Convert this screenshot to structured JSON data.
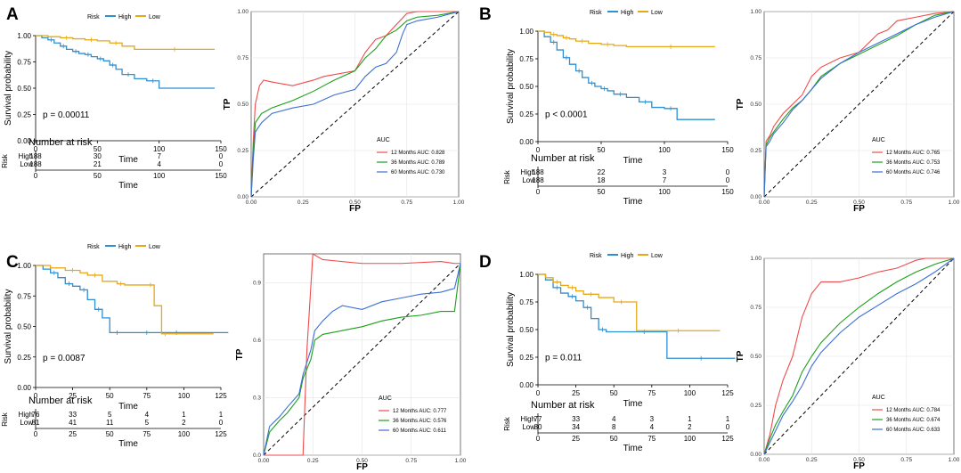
{
  "colors": {
    "high": "#2f8fd0",
    "low": "#e6a817",
    "roc12": "#ef4b4b",
    "roc36": "#1aa01a",
    "roc60": "#3d6fd6"
  },
  "shared": {
    "risk_label": "Risk",
    "high_label": "High",
    "low_label": "Low",
    "km_ylabel": "Survival probability",
    "km_xlabel": "Time",
    "risk_table_title": "Number at risk",
    "risk_axis_label": "Risk",
    "roc_xlabel": "FP",
    "roc_ylabel": "TP",
    "auc_title": "AUC"
  },
  "chart_data": [
    {
      "panel": "A",
      "type": "line",
      "subtype": "kaplan-meier",
      "xlim": [
        0,
        150
      ],
      "ylim": [
        0,
        1
      ],
      "xticks": [
        "0",
        "50",
        "100",
        "150"
      ],
      "yticks": [
        "0.00",
        "0.25",
        "0.50",
        "0.75",
        "1.00"
      ],
      "pvalue": "p = 0.00011",
      "series": [
        {
          "name": "High",
          "x": [
            0,
            5,
            10,
            15,
            20,
            25,
            30,
            35,
            40,
            45,
            50,
            55,
            60,
            65,
            70,
            80,
            90,
            100,
            145
          ],
          "y": [
            1,
            0.98,
            0.96,
            0.93,
            0.9,
            0.87,
            0.85,
            0.83,
            0.82,
            0.8,
            0.78,
            0.76,
            0.72,
            0.68,
            0.63,
            0.59,
            0.57,
            0.5,
            0.5
          ]
        },
        {
          "name": "Low",
          "x": [
            0,
            10,
            20,
            30,
            40,
            50,
            60,
            70,
            80,
            145
          ],
          "y": [
            1,
            0.99,
            0.98,
            0.97,
            0.96,
            0.95,
            0.93,
            0.9,
            0.87,
            0.87
          ]
        }
      ],
      "risk_table": {
        "xticks": [
          "0",
          "50",
          "100",
          "150"
        ],
        "high": [
          "188",
          "30",
          "7",
          "0"
        ],
        "low": [
          "188",
          "21",
          "4",
          "0"
        ]
      },
      "roc": {
        "xticks": [
          "0.00",
          "0.25",
          "0.50",
          "0.75",
          "1.00"
        ],
        "yticks": [
          "0.00",
          "0.25",
          "0.50",
          "0.75",
          "1.00"
        ],
        "legend": [
          "12 Months AUC: 0.828",
          "36 Months AUC: 0.789",
          "60 Months AUC: 0.730"
        ],
        "series": [
          {
            "name": "12 Months",
            "x": [
              0,
              0.01,
              0.02,
              0.04,
              0.06,
              0.1,
              0.2,
              0.3,
              0.35,
              0.4,
              0.5,
              0.55,
              0.6,
              0.65,
              0.7,
              0.75,
              0.8,
              0.9,
              1
            ],
            "y": [
              0,
              0.3,
              0.5,
              0.6,
              0.63,
              0.62,
              0.6,
              0.63,
              0.65,
              0.66,
              0.68,
              0.78,
              0.85,
              0.87,
              0.93,
              0.99,
              1,
              1,
              1
            ]
          },
          {
            "name": "36 Months",
            "x": [
              0,
              0.01,
              0.02,
              0.05,
              0.1,
              0.2,
              0.3,
              0.35,
              0.4,
              0.5,
              0.55,
              0.6,
              0.65,
              0.7,
              0.75,
              0.8,
              0.9,
              1
            ],
            "y": [
              0,
              0.25,
              0.4,
              0.45,
              0.48,
              0.52,
              0.57,
              0.6,
              0.63,
              0.68,
              0.75,
              0.8,
              0.87,
              0.9,
              0.95,
              0.97,
              0.98,
              1
            ]
          },
          {
            "name": "60 Months",
            "x": [
              0,
              0.01,
              0.02,
              0.05,
              0.1,
              0.2,
              0.3,
              0.4,
              0.5,
              0.55,
              0.6,
              0.65,
              0.7,
              0.73,
              0.75,
              0.8,
              0.9,
              1
            ],
            "y": [
              0,
              0.2,
              0.35,
              0.4,
              0.45,
              0.48,
              0.5,
              0.55,
              0.58,
              0.65,
              0.7,
              0.72,
              0.78,
              0.88,
              0.93,
              0.95,
              0.97,
              1
            ]
          }
        ]
      }
    },
    {
      "panel": "B",
      "type": "line",
      "subtype": "kaplan-meier",
      "xlim": [
        0,
        150
      ],
      "ylim": [
        0,
        1
      ],
      "xticks": [
        "0",
        "50",
        "100",
        "150"
      ],
      "yticks": [
        "0.00",
        "0.25",
        "0.50",
        "0.75",
        "1.00"
      ],
      "pvalue": "p < 0.0001",
      "series": [
        {
          "name": "High",
          "x": [
            0,
            5,
            10,
            15,
            20,
            25,
            30,
            35,
            40,
            45,
            50,
            55,
            60,
            70,
            80,
            90,
            100,
            110,
            140
          ],
          "y": [
            1,
            0.95,
            0.9,
            0.83,
            0.76,
            0.7,
            0.64,
            0.58,
            0.53,
            0.5,
            0.48,
            0.46,
            0.43,
            0.4,
            0.36,
            0.31,
            0.3,
            0.2,
            0.2
          ]
        },
        {
          "name": "Low",
          "x": [
            0,
            5,
            10,
            15,
            20,
            25,
            30,
            40,
            50,
            60,
            70,
            140
          ],
          "y": [
            1,
            0.99,
            0.97,
            0.96,
            0.94,
            0.93,
            0.91,
            0.89,
            0.88,
            0.87,
            0.86,
            0.86
          ]
        }
      ],
      "risk_table": {
        "xticks": [
          "0",
          "50",
          "100",
          "150"
        ],
        "high": [
          "188",
          "22",
          "3",
          "0"
        ],
        "low": [
          "188",
          "18",
          "7",
          "0"
        ]
      },
      "roc": {
        "xticks": [
          "0.00",
          "0.25",
          "0.50",
          "0.75",
          "1.00"
        ],
        "yticks": [
          "0.00",
          "0.25",
          "0.50",
          "0.75",
          "1.00"
        ],
        "legend": [
          "12 Months AUC: 0.765",
          "36 Months AUC: 0.753",
          "60 Months AUC: 0.746"
        ],
        "series": [
          {
            "name": "12 Months",
            "x": [
              0,
              0.01,
              0.03,
              0.05,
              0.1,
              0.15,
              0.2,
              0.25,
              0.3,
              0.4,
              0.5,
              0.6,
              0.65,
              0.7,
              0.8,
              0.9,
              1
            ],
            "y": [
              0,
              0.3,
              0.33,
              0.38,
              0.45,
              0.5,
              0.55,
              0.65,
              0.7,
              0.75,
              0.78,
              0.88,
              0.9,
              0.95,
              0.97,
              0.99,
              1
            ]
          },
          {
            "name": "36 Months",
            "x": [
              0,
              0.01,
              0.03,
              0.05,
              0.1,
              0.15,
              0.2,
              0.25,
              0.3,
              0.4,
              0.5,
              0.6,
              0.7,
              0.8,
              0.9,
              1
            ],
            "y": [
              0,
              0.28,
              0.32,
              0.35,
              0.42,
              0.48,
              0.52,
              0.58,
              0.65,
              0.72,
              0.77,
              0.82,
              0.87,
              0.93,
              0.98,
              1
            ]
          },
          {
            "name": "60 Months",
            "x": [
              0,
              0.01,
              0.03,
              0.05,
              0.1,
              0.15,
              0.2,
              0.25,
              0.3,
              0.4,
              0.5,
              0.6,
              0.7,
              0.8,
              0.9,
              1
            ],
            "y": [
              0,
              0.27,
              0.3,
              0.34,
              0.4,
              0.47,
              0.52,
              0.58,
              0.64,
              0.72,
              0.78,
              0.83,
              0.88,
              0.93,
              0.97,
              1
            ]
          }
        ]
      }
    },
    {
      "panel": "C",
      "type": "line",
      "subtype": "kaplan-meier",
      "xlim": [
        0,
        125
      ],
      "ylim": [
        0,
        1
      ],
      "xticks": [
        "0",
        "25",
        "50",
        "75",
        "100",
        "125"
      ],
      "yticks": [
        "0.00",
        "0.25",
        "0.50",
        "0.75",
        "1.00"
      ],
      "pvalue": "p = 0.0087",
      "series": [
        {
          "name": "High",
          "x": [
            0,
            5,
            10,
            15,
            20,
            25,
            30,
            35,
            40,
            45,
            50,
            60,
            70,
            80,
            90,
            100,
            130
          ],
          "y": [
            1,
            0.97,
            0.94,
            0.9,
            0.85,
            0.83,
            0.8,
            0.72,
            0.64,
            0.57,
            0.45,
            0.45,
            0.45,
            0.45,
            0.45,
            0.45,
            0.45
          ]
        },
        {
          "name": "Low",
          "x": [
            0,
            10,
            20,
            30,
            35,
            45,
            55,
            60,
            75,
            80,
            85,
            90,
            120
          ],
          "y": [
            1,
            0.98,
            0.96,
            0.94,
            0.92,
            0.87,
            0.85,
            0.84,
            0.84,
            0.67,
            0.44,
            0.44,
            0.44
          ]
        }
      ],
      "risk_table": {
        "xticks": [
          "0",
          "25",
          "50",
          "75",
          "100",
          "125"
        ],
        "high": [
          "76",
          "33",
          "5",
          "4",
          "1",
          "1"
        ],
        "low": [
          "81",
          "41",
          "11",
          "5",
          "2",
          "0"
        ]
      },
      "roc": {
        "xticks": [
          "0.00",
          "0.25",
          "0.50",
          "0.75",
          "1.00"
        ],
        "yticks": [
          "0.0",
          "0.3",
          "0.6",
          "0.9"
        ],
        "ylim": [
          0,
          1.05
        ],
        "legend": [
          "12 Months AUC: 0.777",
          "36 Months AUC: 0.576",
          "60 Months AUC: 0.611"
        ],
        "series": [
          {
            "name": "12 Months",
            "x": [
              0,
              0.2,
              0.22,
              0.25,
              0.3,
              0.5,
              0.7,
              0.9,
              0.97,
              1
            ],
            "y": [
              0,
              0,
              0.55,
              1.05,
              1.02,
              1,
              1,
              1.01,
              1,
              1
            ]
          },
          {
            "name": "36 Months",
            "x": [
              0,
              0.03,
              0.08,
              0.12,
              0.18,
              0.2,
              0.24,
              0.26,
              0.3,
              0.4,
              0.5,
              0.6,
              0.7,
              0.8,
              0.9,
              0.97,
              1
            ],
            "y": [
              0,
              0.12,
              0.18,
              0.22,
              0.3,
              0.4,
              0.5,
              0.6,
              0.63,
              0.65,
              0.67,
              0.7,
              0.72,
              0.73,
              0.75,
              0.75,
              1
            ]
          },
          {
            "name": "60 Months",
            "x": [
              0,
              0.03,
              0.08,
              0.12,
              0.18,
              0.2,
              0.24,
              0.26,
              0.3,
              0.35,
              0.4,
              0.5,
              0.6,
              0.7,
              0.8,
              0.9,
              0.97,
              1
            ],
            "y": [
              0,
              0.15,
              0.2,
              0.25,
              0.32,
              0.42,
              0.55,
              0.65,
              0.7,
              0.75,
              0.78,
              0.76,
              0.8,
              0.82,
              0.84,
              0.85,
              0.87,
              1
            ]
          }
        ]
      }
    },
    {
      "panel": "D",
      "type": "line",
      "subtype": "kaplan-meier",
      "xlim": [
        0,
        125
      ],
      "ylim": [
        0,
        1
      ],
      "xticks": [
        "0",
        "25",
        "50",
        "75",
        "100",
        "125"
      ],
      "yticks": [
        "0.00",
        "0.25",
        "0.50",
        "0.75",
        "1.00"
      ],
      "pvalue": "p = 0.011",
      "series": [
        {
          "name": "High",
          "x": [
            0,
            5,
            10,
            15,
            20,
            25,
            30,
            35,
            40,
            45,
            60,
            80,
            85,
            130
          ],
          "y": [
            1,
            0.95,
            0.88,
            0.83,
            0.8,
            0.76,
            0.7,
            0.6,
            0.5,
            0.48,
            0.48,
            0.48,
            0.24,
            0.24
          ]
        },
        {
          "name": "Low",
          "x": [
            0,
            5,
            10,
            15,
            20,
            25,
            30,
            40,
            50,
            60,
            65,
            120
          ],
          "y": [
            1,
            0.97,
            0.93,
            0.9,
            0.88,
            0.85,
            0.82,
            0.79,
            0.75,
            0.75,
            0.49,
            0.49
          ]
        }
      ],
      "risk_table": {
        "xticks": [
          "0",
          "25",
          "50",
          "75",
          "100",
          "125"
        ],
        "high": [
          "77",
          "33",
          "4",
          "3",
          "1",
          "1"
        ],
        "low": [
          "80",
          "34",
          "8",
          "4",
          "2",
          "0"
        ]
      },
      "roc": {
        "xticks": [
          "0.00",
          "0.25",
          "0.50",
          "0.75",
          "1.00"
        ],
        "yticks": [
          "0.00",
          "0.25",
          "0.50",
          "0.75",
          "1.00"
        ],
        "legend": [
          "12 Months AUC: 0.784",
          "36 Months AUC: 0.674",
          "60 Months AUC: 0.633"
        ],
        "series": [
          {
            "name": "12 Months",
            "x": [
              0,
              0.03,
              0.06,
              0.1,
              0.15,
              0.2,
              0.25,
              0.3,
              0.4,
              0.5,
              0.6,
              0.7,
              0.8,
              0.85,
              1
            ],
            "y": [
              0,
              0.1,
              0.25,
              0.38,
              0.5,
              0.7,
              0.82,
              0.88,
              0.88,
              0.9,
              0.93,
              0.95,
              0.99,
              1,
              1
            ]
          },
          {
            "name": "36 Months",
            "x": [
              0,
              0.03,
              0.06,
              0.1,
              0.15,
              0.2,
              0.25,
              0.3,
              0.4,
              0.5,
              0.6,
              0.7,
              0.8,
              0.9,
              1
            ],
            "y": [
              0,
              0.08,
              0.15,
              0.22,
              0.3,
              0.42,
              0.5,
              0.57,
              0.67,
              0.75,
              0.82,
              0.88,
              0.93,
              0.97,
              1
            ]
          },
          {
            "name": "60 Months",
            "x": [
              0,
              0.03,
              0.06,
              0.1,
              0.15,
              0.2,
              0.25,
              0.3,
              0.4,
              0.5,
              0.6,
              0.7,
              0.8,
              0.9,
              1
            ],
            "y": [
              0,
              0.06,
              0.12,
              0.2,
              0.27,
              0.35,
              0.45,
              0.52,
              0.62,
              0.7,
              0.76,
              0.82,
              0.87,
              0.93,
              1
            ]
          }
        ]
      }
    }
  ]
}
